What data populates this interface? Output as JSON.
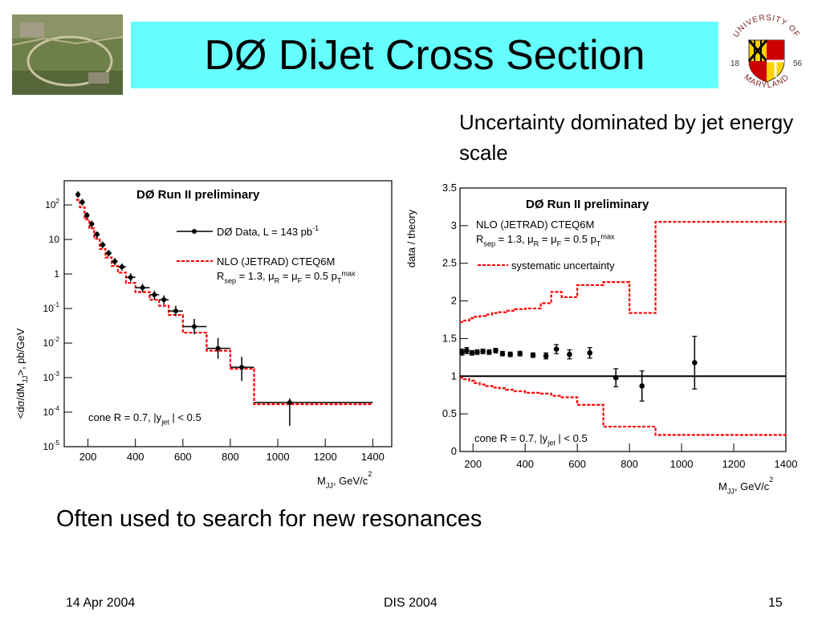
{
  "slide": {
    "title": "DØ DiJet Cross Section",
    "note": "Uncertainty dominated by jet energy scale",
    "subtitle": "Often used to search for new resonances",
    "footer": {
      "date": "14 Apr 2004",
      "event": "DIS 2004",
      "page": "15"
    },
    "logo": {
      "ring_text": "UNIVERSITY OF MARYLAND",
      "year_left": "18",
      "year_right": "56"
    },
    "photo": {
      "icon": "accelerator-aerial-photo"
    }
  },
  "colors": {
    "title_bg": "#66ffff",
    "theory": "#ff0000",
    "data": "#000000"
  },
  "chart_data": [
    {
      "type": "scatter",
      "title": "DØ Run II preliminary",
      "xlabel": "M_JJ, GeV/c²",
      "ylabel": "<dσ/dM_JJ>, pb/GeV",
      "yscale": "log",
      "xlim": [
        100,
        1480
      ],
      "ylim": [
        1e-05,
        500
      ],
      "xticks": [
        200,
        400,
        600,
        800,
        1000,
        1200,
        1400
      ],
      "yticks": [
        {
          "v": 100,
          "b": "10",
          "e": "2"
        },
        {
          "v": 10,
          "b": "10",
          "e": ""
        },
        {
          "v": 1,
          "b": "1",
          "e": ""
        },
        {
          "v": 0.1,
          "b": "10",
          "e": "-1"
        },
        {
          "v": 0.01,
          "b": "10",
          "e": "-2"
        },
        {
          "v": 0.001,
          "b": "10",
          "e": "-3"
        },
        {
          "v": 0.0001,
          "b": "10",
          "e": "-4"
        },
        {
          "v": 1e-05,
          "b": "10",
          "e": "-5"
        }
      ],
      "legend": [
        {
          "kind": "data",
          "text": "DØ Data, L = 143 pb",
          "sup": "-1"
        },
        {
          "kind": "theory",
          "text": "NLO (JETRAD) CTEQ6M"
        },
        {
          "kind": "text",
          "text": "R_sep = 1.3, μ_R = μ_F = 0.5 p_T^max"
        }
      ],
      "cut_label": "cone R = 0.7, |y_jet| < 0.5",
      "data_points": [
        {
          "x": 158,
          "y": 200,
          "ylo": 160,
          "yhi": 250,
          "xlo": 150,
          "xhi": 166
        },
        {
          "x": 176,
          "y": 120,
          "ylo": 95,
          "yhi": 150,
          "xlo": 166,
          "xhi": 186
        },
        {
          "x": 196,
          "y": 50,
          "ylo": 40,
          "yhi": 62,
          "xlo": 186,
          "xhi": 206
        },
        {
          "x": 216,
          "y": 28,
          "ylo": 22,
          "yhi": 35,
          "xlo": 206,
          "xhi": 226
        },
        {
          "x": 238,
          "y": 14,
          "ylo": 11,
          "yhi": 17,
          "xlo": 226,
          "xhi": 250
        },
        {
          "x": 262,
          "y": 7,
          "ylo": 5.6,
          "yhi": 8.7,
          "xlo": 250,
          "xhi": 274
        },
        {
          "x": 287,
          "y": 4,
          "ylo": 3.2,
          "yhi": 5,
          "xlo": 274,
          "xhi": 300
        },
        {
          "x": 313,
          "y": 2.3,
          "ylo": 1.8,
          "yhi": 2.9,
          "xlo": 300,
          "xhi": 326
        },
        {
          "x": 343,
          "y": 1.6,
          "ylo": 1.25,
          "yhi": 2,
          "xlo": 326,
          "xhi": 360
        },
        {
          "x": 380,
          "y": 0.8,
          "ylo": 0.6,
          "yhi": 1.05,
          "xlo": 360,
          "xhi": 400
        },
        {
          "x": 430,
          "y": 0.4,
          "ylo": 0.3,
          "yhi": 0.52,
          "xlo": 400,
          "xhi": 460
        },
        {
          "x": 480,
          "y": 0.25,
          "ylo": 0.18,
          "yhi": 0.33,
          "xlo": 460,
          "xhi": 500
        },
        {
          "x": 520,
          "y": 0.18,
          "ylo": 0.13,
          "yhi": 0.24,
          "xlo": 500,
          "xhi": 540
        },
        {
          "x": 570,
          "y": 0.085,
          "ylo": 0.06,
          "yhi": 0.12,
          "xlo": 540,
          "xhi": 600
        },
        {
          "x": 648,
          "y": 0.03,
          "ylo": 0.018,
          "yhi": 0.05,
          "xlo": 600,
          "xhi": 700
        },
        {
          "x": 748,
          "y": 0.007,
          "ylo": 0.0035,
          "yhi": 0.014,
          "xlo": 700,
          "xhi": 800
        },
        {
          "x": 848,
          "y": 0.002,
          "ylo": 0.0008,
          "yhi": 0.004,
          "xlo": 800,
          "xhi": 900
        },
        {
          "x": 1050,
          "y": 0.00019,
          "ylo": 4e-05,
          "yhi": 0.00025,
          "xlo": 900,
          "xhi": 1400
        }
      ],
      "theory_step": {
        "edges": [
          150,
          166,
          186,
          206,
          226,
          250,
          274,
          300,
          326,
          360,
          400,
          460,
          500,
          540,
          600,
          700,
          800,
          900,
          1400
        ],
        "values": [
          140,
          85,
          38,
          21,
          10.5,
          5.3,
          3.0,
          1.7,
          1.1,
          0.55,
          0.3,
          0.18,
          0.12,
          0.065,
          0.02,
          0.006,
          0.0018,
          0.00017
        ]
      }
    },
    {
      "type": "scatter",
      "title": "DØ Run II preliminary",
      "xlabel": "M_JJ, GeV/c²",
      "ylabel": "data / theory",
      "yscale": "linear",
      "xlim": [
        150,
        1400
      ],
      "ylim": [
        0,
        3.5
      ],
      "xticks": [
        200,
        400,
        600,
        800,
        1000,
        1200,
        1400
      ],
      "yticks": [
        0,
        0.5,
        1,
        1.5,
        2,
        2.5,
        3,
        3.5
      ],
      "ytick_labels": [
        "0",
        "0.5",
        "1",
        "1.5",
        "2",
        "2.5",
        "3",
        "3.5"
      ],
      "reference_line": 1,
      "legend": [
        {
          "kind": "text",
          "text": "NLO (JETRAD) CTEQ6M"
        },
        {
          "kind": "text",
          "text": "R_sep = 1.3, μ_R = μ_F = 0.5 p_T^max"
        },
        {
          "kind": "theory",
          "text": "systematic uncertainty"
        }
      ],
      "cut_label": "cone R = 0.7, |y_jet| < 0.5",
      "data_points": [
        {
          "x": 158,
          "y": 1.32,
          "err": 0.04
        },
        {
          "x": 176,
          "y": 1.34,
          "err": 0.04
        },
        {
          "x": 196,
          "y": 1.31,
          "err": 0.03
        },
        {
          "x": 216,
          "y": 1.32,
          "err": 0.03
        },
        {
          "x": 238,
          "y": 1.33,
          "err": 0.03
        },
        {
          "x": 262,
          "y": 1.32,
          "err": 0.03
        },
        {
          "x": 287,
          "y": 1.34,
          "err": 0.03
        },
        {
          "x": 313,
          "y": 1.3,
          "err": 0.03
        },
        {
          "x": 343,
          "y": 1.29,
          "err": 0.03
        },
        {
          "x": 380,
          "y": 1.3,
          "err": 0.03
        },
        {
          "x": 430,
          "y": 1.28,
          "err": 0.03
        },
        {
          "x": 480,
          "y": 1.27,
          "err": 0.04
        },
        {
          "x": 520,
          "y": 1.36,
          "err": 0.06
        },
        {
          "x": 570,
          "y": 1.29,
          "err": 0.06
        },
        {
          "x": 648,
          "y": 1.31,
          "err": 0.07
        },
        {
          "x": 748,
          "y": 0.98,
          "err": 0.12
        },
        {
          "x": 848,
          "y": 0.87,
          "err": 0.2
        },
        {
          "x": 1050,
          "y": 1.18,
          "err": 0.35
        }
      ],
      "upper_band": {
        "edges": [
          150,
          166,
          186,
          206,
          226,
          250,
          274,
          300,
          326,
          360,
          400,
          460,
          500,
          540,
          600,
          700,
          800,
          900,
          1400
        ],
        "values": [
          1.72,
          1.74,
          1.77,
          1.79,
          1.8,
          1.82,
          1.84,
          1.85,
          1.87,
          1.89,
          1.9,
          1.97,
          2.12,
          2.05,
          2.21,
          2.25,
          1.84,
          3.05
        ]
      },
      "lower_band": {
        "edges": [
          150,
          166,
          186,
          206,
          226,
          250,
          274,
          300,
          326,
          360,
          400,
          460,
          500,
          540,
          600,
          700,
          800,
          900,
          1400
        ],
        "values": [
          0.98,
          0.96,
          0.94,
          0.91,
          0.89,
          0.87,
          0.85,
          0.84,
          0.82,
          0.8,
          0.78,
          0.77,
          0.74,
          0.72,
          0.62,
          0.33,
          0.33,
          0.22
        ]
      }
    }
  ]
}
